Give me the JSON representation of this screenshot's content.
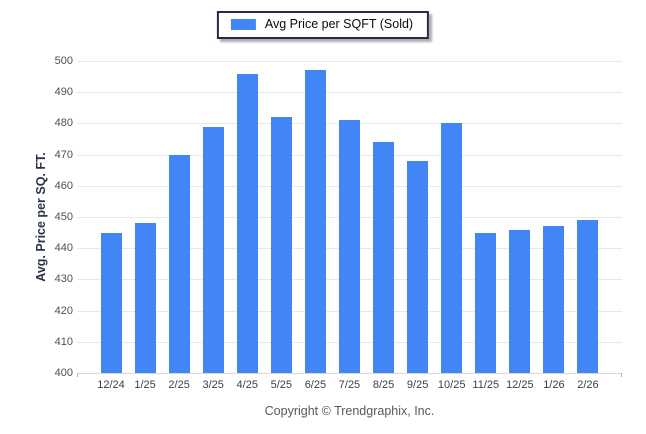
{
  "legend": {
    "label": "Avg Price per SQFT (Sold)",
    "swatch_color": "#4285f4"
  },
  "chart_data": {
    "type": "bar",
    "title": "",
    "xlabel": "",
    "ylabel": "Avg. Price per SQ. FT.",
    "categories": [
      "12/24",
      "1/25",
      "2/25",
      "3/25",
      "4/25",
      "5/25",
      "6/25",
      "7/25",
      "8/25",
      "9/25",
      "10/25",
      "11/25",
      "12/25",
      "1/26",
      "2/26"
    ],
    "series": [
      {
        "name": "Avg Price per SQFT (Sold)",
        "values": [
          445,
          448,
          470,
          479,
          496,
          482,
          497,
          481,
          474,
          468,
          480,
          445,
          446,
          447,
          449
        ]
      }
    ],
    "ylim": [
      400,
      500
    ],
    "ytick_step": 10,
    "grid": "horizontal",
    "legend_position": "top-center",
    "bar_color": "#4285f4"
  },
  "footer": {
    "copyright": "Copyright © Trendgraphix, Inc."
  },
  "colors": {
    "bar": "#4285f4",
    "grid": "#e9e9e9",
    "baseline": "#d8d8d8",
    "y_tick_text": "#4f4f4f",
    "x_tick_text": "#39404e",
    "axis_title_text": "#2b3548",
    "legend_border": "#222c44",
    "footer_text": "#595959",
    "page_background": "#ffffff"
  }
}
